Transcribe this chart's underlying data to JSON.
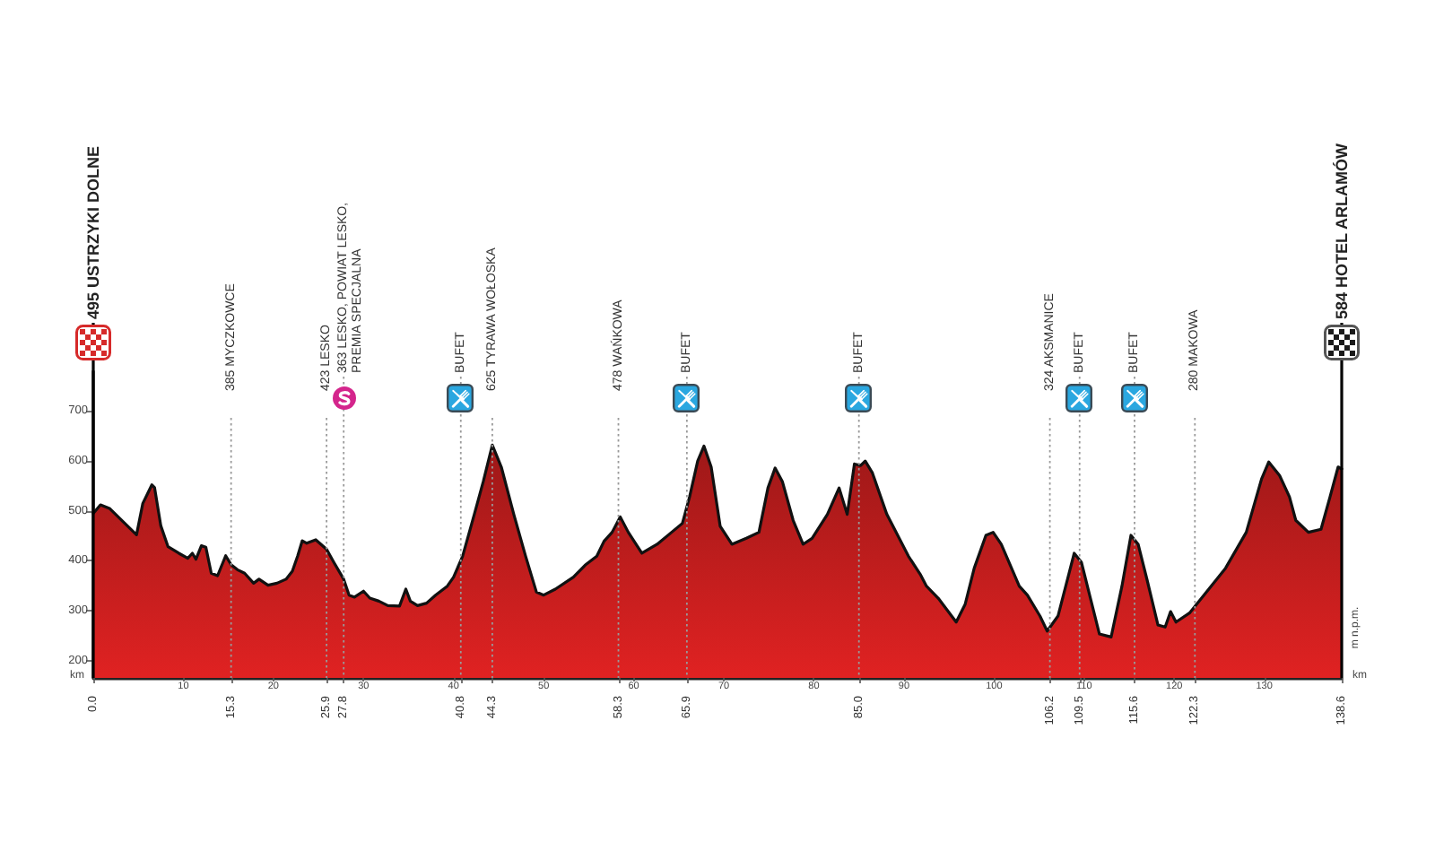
{
  "chart_data": {
    "type": "area",
    "x": [
      0,
      0.8,
      1.8,
      3.5,
      4.8,
      5.5,
      6.5,
      6.8,
      7.5,
      8.3,
      9.5,
      10.5,
      11.0,
      11.4,
      12.0,
      12.5,
      13.1,
      13.8,
      14.7,
      15.3,
      16.0,
      16.8,
      17.8,
      18.4,
      19.4,
      20.4,
      21.4,
      22.1,
      22.7,
      23.2,
      23.7,
      24.7,
      25.9,
      26.7,
      27.8,
      28.4,
      29.0,
      30.0,
      30.7,
      31.7,
      32.7,
      34.0,
      34.7,
      35.2,
      36.0,
      37.0,
      38.0,
      39.3,
      40.0,
      41.0,
      42.3,
      43.3,
      44.3,
      45.3,
      46.7,
      48.0,
      49.2,
      50.0,
      51.3,
      53.3,
      54.6,
      55.9,
      56.7,
      57.6,
      58.5,
      59.4,
      60.9,
      62.6,
      64.2,
      65.4,
      66.2,
      67.1,
      67.8,
      68.6,
      69.6,
      70.9,
      72.5,
      73.9,
      74.9,
      75.7,
      76.5,
      77.7,
      78.8,
      79.8,
      81.5,
      82.8,
      83.7,
      84.5,
      85.2,
      85.7,
      86.5,
      88.1,
      90.5,
      91.8,
      92.5,
      93.8,
      95.8,
      96.8,
      97.8,
      99.1,
      99.9,
      100.8,
      102.8,
      103.7,
      105.1,
      105.9,
      107.1,
      108.3,
      108.9,
      109.7,
      110.7,
      111.7,
      113.0,
      114.2,
      115.2,
      116.0,
      117.0,
      118.2,
      119.0,
      119.6,
      120.2,
      121.7,
      123.3,
      125.7,
      128.0,
      129.7,
      130.5,
      131.7,
      132.8,
      133.5,
      134.9,
      136.3,
      137.3,
      138.2,
      138.6
    ],
    "values": [
      495,
      512,
      505,
      475,
      452,
      515,
      552,
      547,
      470,
      428,
      415,
      405,
      415,
      403,
      430,
      427,
      375,
      370,
      410,
      392,
      382,
      375,
      355,
      363,
      351,
      355,
      363,
      379,
      410,
      440,
      435,
      442,
      423,
      397,
      363,
      331,
      327,
      339,
      325,
      319,
      310,
      309,
      343,
      319,
      310,
      315,
      331,
      349,
      367,
      409,
      493,
      559,
      632,
      588,
      492,
      409,
      337,
      331,
      343,
      367,
      391,
      409,
      439,
      457,
      488,
      457,
      415,
      433,
      457,
      475,
      528,
      600,
      630,
      588,
      469,
      433,
      445,
      457,
      546,
      586,
      559,
      481,
      433,
      445,
      493,
      546,
      493,
      594,
      591,
      600,
      576,
      493,
      409,
      373,
      349,
      325,
      277,
      313,
      385,
      451,
      457,
      433,
      349,
      331,
      289,
      259,
      289,
      373,
      415,
      397,
      325,
      253,
      247,
      349,
      451,
      433,
      361,
      271,
      267,
      298,
      277,
      295,
      331,
      385,
      457,
      564,
      598,
      571,
      528,
      481,
      457,
      463,
      528,
      588,
      584
    ],
    "color": "#e02222",
    "xlabel": "km",
    "ylabel": "m n.p.m.",
    "xlim": [
      0,
      138.6
    ],
    "ylim": [
      165,
      780
    ],
    "xticks": [
      10,
      20,
      30,
      40,
      50,
      60,
      70,
      80,
      90,
      100,
      110,
      120,
      130
    ],
    "x2lim": [
      0,
      138.6
    ],
    "x2ticks": [
      {
        "value": 0,
        "label": "0.0"
      },
      15.3,
      25.9,
      27.8,
      40.8,
      44.3,
      58.3,
      65.9,
      {
        "value": 85,
        "label": "85.0"
      },
      106.2,
      109.5,
      115.6,
      122.3,
      138.6
    ],
    "yticks": [
      200,
      300,
      400,
      500,
      600,
      700
    ],
    "ref_lines": [
      {
        "axis": "x",
        "value": 0,
        "label": "495 USTRZYKI DOLNE",
        "color": "#000000",
        "line_style": "solid"
      },
      {
        "axis": "x",
        "value": 15.3,
        "label": "385 MYCZKOWCE",
        "color": "#9a9a9a",
        "line_style": "dotted"
      },
      {
        "axis": "x",
        "value": 25.9,
        "label": "423 LESKO",
        "color": "#9a9a9a",
        "line_style": "dotted"
      },
      {
        "axis": "x",
        "value": 27.8,
        "label": "363 LESKO, POWIAT LESKO, PREMIA SPECJALNA",
        "color": "#9a9a9a",
        "line_style": "dotted"
      },
      {
        "axis": "x",
        "value": 40.8,
        "label": "BUFET",
        "color": "#9a9a9a",
        "line_style": "dotted"
      },
      {
        "axis": "x",
        "value": 44.3,
        "label": "625 TYRAWA WOŁOSKA",
        "color": "#9a9a9a",
        "line_style": "dotted"
      },
      {
        "axis": "x",
        "value": 58.3,
        "label": "478 WAŃKOWA",
        "color": "#9a9a9a",
        "line_style": "dotted"
      },
      {
        "axis": "x",
        "value": 65.9,
        "label": "BUFET",
        "color": "#9a9a9a",
        "line_style": "dotted"
      },
      {
        "axis": "x",
        "value": 85,
        "label": "BUFET",
        "color": "#9a9a9a",
        "line_style": "dotted"
      },
      {
        "axis": "x",
        "value": 106.2,
        "label": "324 AKSMANICE",
        "color": "#9a9a9a",
        "line_style": "dotted"
      },
      {
        "axis": "x",
        "value": 109.5,
        "label": "BUFET",
        "color": "#9a9a9a",
        "line_style": "dotted"
      },
      {
        "axis": "x",
        "value": 115.6,
        "label": "BUFET",
        "color": "#9a9a9a",
        "line_style": "dotted"
      },
      {
        "axis": "x",
        "value": 122.3,
        "label": "280 MAKOWA",
        "color": "#9a9a9a",
        "line_style": "dotted"
      },
      {
        "axis": "x",
        "value": 138.6,
        "label": "584 HOTEL ARLAMÓW",
        "color": "#000000",
        "line_style": "solid"
      }
    ],
    "annotations": [
      "km"
    ]
  }
}
